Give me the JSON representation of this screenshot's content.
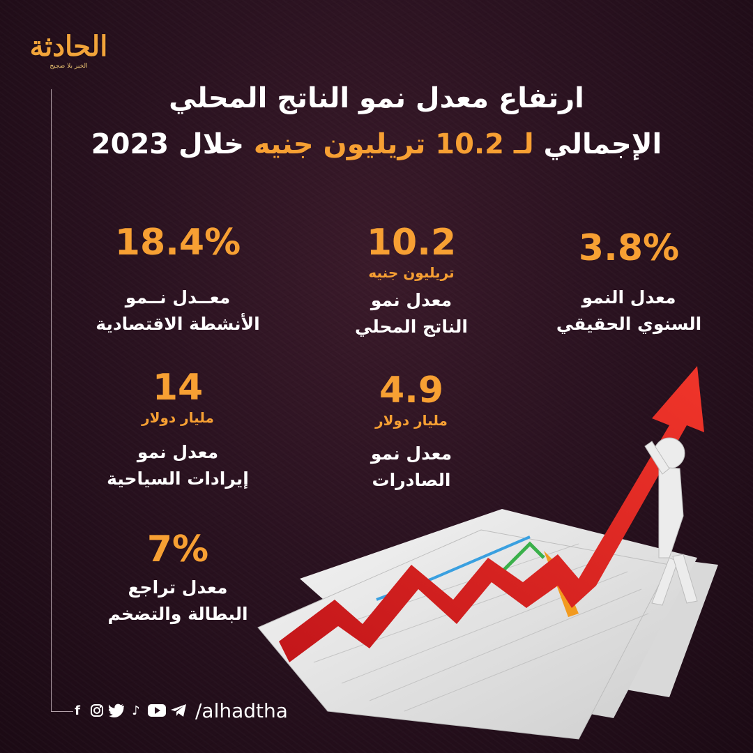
{
  "logo": {
    "name": "الحادثة",
    "tagline": "الخبر بلا ضجيج"
  },
  "title": {
    "line1": "ارتفاع معدل نمو الناتج المحلي",
    "line2_start": "الإجمالي",
    "line2_highlight": "لـ 10.2 تريليون جنيه",
    "line2_end": "خلال 2023"
  },
  "stats": [
    {
      "value": "3.8%",
      "unit": "",
      "label1": "معدل النمو",
      "label2": "السنوي الحقيقي"
    },
    {
      "value": "10.2",
      "unit": "تريليون جنيه",
      "label1": "معدل نمو",
      "label2": "الناتج المحلي"
    },
    {
      "value": "18.4%",
      "unit": "",
      "label1": "معــدل نــمو",
      "label2": "الأنشطة الاقتصادية"
    },
    {
      "value": "4.9",
      "unit": "مليار دولار",
      "label1": "معدل نمو",
      "label2": "الصادرات"
    },
    {
      "value": "14",
      "unit": "مليار دولار",
      "label1": "معدل نمو",
      "label2": "إيرادات السياحية"
    },
    {
      "value": "7%",
      "unit": "",
      "label1": "معدل تراجع",
      "label2": "البطالة والتضخم"
    }
  ],
  "footer": {
    "handle": "/alhadtha",
    "icons": [
      "facebook-icon",
      "instagram-icon",
      "twitter-icon",
      "tiktok-icon",
      "youtube-icon",
      "telegram-icon"
    ]
  },
  "colors": {
    "accent": "#f7a033",
    "background": "#2a1220",
    "arrow": "#e52420"
  }
}
